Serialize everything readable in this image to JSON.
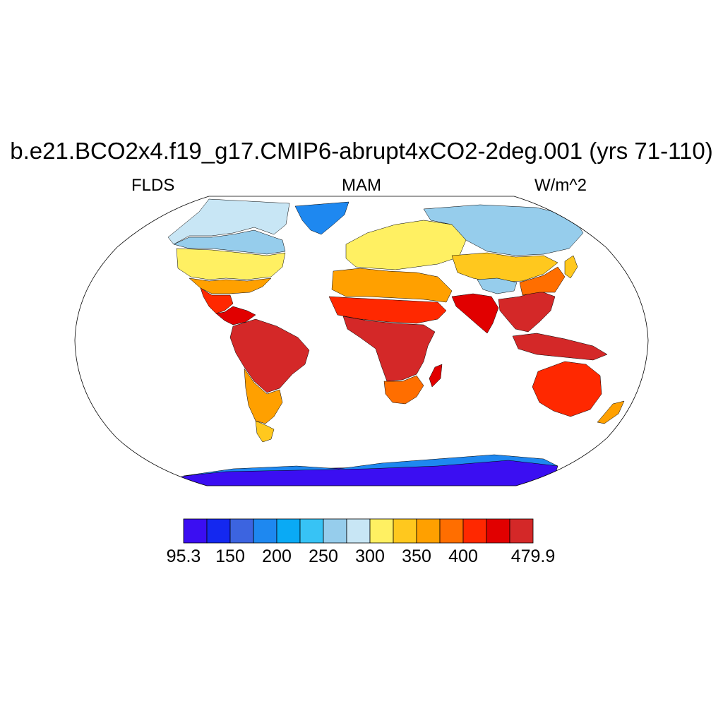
{
  "header": {
    "title": "b.e21.BCO2x4.f19_g17.CMIP6-abrupt4xCO2-2deg.001 (yrs 71-110)",
    "left": "FLDS",
    "center": "MAM",
    "right": "W/m^2"
  },
  "colorbar": {
    "colors": [
      "#3b0ef2",
      "#1428f0",
      "#3c64e0",
      "#1e88f0",
      "#0aaaf5",
      "#37c3f5",
      "#96cdec",
      "#c8e6f5",
      "#fff062",
      "#ffc81e",
      "#ffa000",
      "#ff6e00",
      "#ff2800",
      "#e10000",
      "#d42828"
    ],
    "labels": [
      "95.3",
      "150",
      "200",
      "250",
      "300",
      "350",
      "400",
      "479.9"
    ],
    "label_positions": [
      0,
      2,
      4,
      6,
      8,
      10,
      12,
      15
    ]
  },
  "map": {
    "projection": "Robinson",
    "land_color_note": "shaded land field; ocean masked white",
    "regions": [
      {
        "name": "greenland",
        "color": "#1e88f0"
      },
      {
        "name": "canada-arctic",
        "color": "#c8e6f5"
      },
      {
        "name": "canada-south",
        "color": "#96cdec"
      },
      {
        "name": "us-north",
        "color": "#fff062"
      },
      {
        "name": "us-south",
        "color": "#ffa000"
      },
      {
        "name": "mexico",
        "color": "#ff2800"
      },
      {
        "name": "central-america",
        "color": "#e10000"
      },
      {
        "name": "south-america-north",
        "color": "#d42828"
      },
      {
        "name": "south-america-south",
        "color": "#ffa000"
      },
      {
        "name": "patagonia",
        "color": "#ffc81e"
      },
      {
        "name": "europe",
        "color": "#fff062"
      },
      {
        "name": "siberia",
        "color": "#96cdec"
      },
      {
        "name": "central-asia",
        "color": "#ffc81e"
      },
      {
        "name": "tibet",
        "color": "#96cdec"
      },
      {
        "name": "north-africa",
        "color": "#ffa000"
      },
      {
        "name": "sahel",
        "color": "#ff2800"
      },
      {
        "name": "africa-central",
        "color": "#d42828"
      },
      {
        "name": "south-africa",
        "color": "#ff6e00"
      },
      {
        "name": "madagascar",
        "color": "#e10000"
      },
      {
        "name": "india",
        "color": "#e10000"
      },
      {
        "name": "southeast-asia",
        "color": "#d42828"
      },
      {
        "name": "east-china",
        "color": "#ff6e00"
      },
      {
        "name": "japan",
        "color": "#ffc81e"
      },
      {
        "name": "indonesia",
        "color": "#d42828"
      },
      {
        "name": "australia",
        "color": "#ff2800"
      },
      {
        "name": "new-zealand",
        "color": "#ffa000"
      },
      {
        "name": "antarctica",
        "color": "#3b0ef2"
      },
      {
        "name": "antarctica-coast",
        "color": "#1e88f0"
      }
    ]
  }
}
